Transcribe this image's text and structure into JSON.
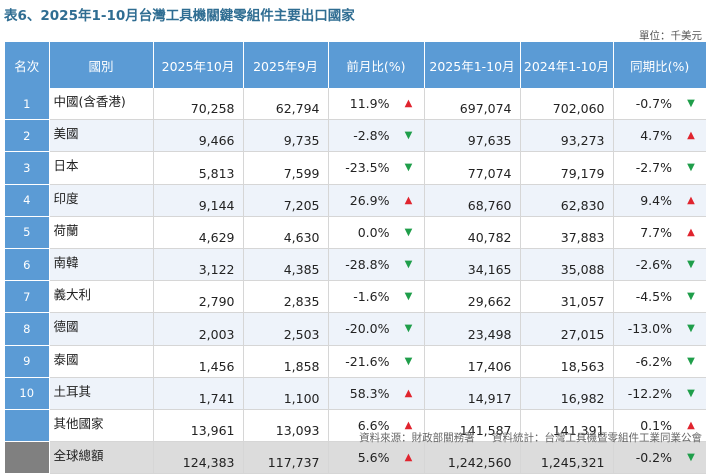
{
  "title": "表6、2025年1-10月台灣工具機關鍵零組件主要出口國家",
  "unit": "單位：千美元",
  "headers": [
    "名次",
    "國別",
    "2025年10月",
    "2025年9月",
    "前月比(%)",
    "2025年1-10月",
    "2024年1-10月",
    "同期比(%)"
  ],
  "rows": [
    {
      "rank": "1",
      "country": "中國(含香港)",
      "oct": "70,258",
      "sep": "62,794",
      "mom": "11.9%",
      "mom_dir": "up",
      "ytd25": "697,074",
      "ytd24": "702,060",
      "yoy": "-0.7%",
      "yoy_dir": "down"
    },
    {
      "rank": "2",
      "country": "美國",
      "oct": "9,466",
      "sep": "9,735",
      "mom": "-2.8%",
      "mom_dir": "down",
      "ytd25": "97,635",
      "ytd24": "93,273",
      "yoy": "4.7%",
      "yoy_dir": "up"
    },
    {
      "rank": "3",
      "country": "日本",
      "oct": "5,813",
      "sep": "7,599",
      "mom": "-23.5%",
      "mom_dir": "down",
      "ytd25": "77,074",
      "ytd24": "79,179",
      "yoy": "-2.7%",
      "yoy_dir": "down"
    },
    {
      "rank": "4",
      "country": "印度",
      "oct": "9,144",
      "sep": "7,205",
      "mom": "26.9%",
      "mom_dir": "up",
      "ytd25": "68,760",
      "ytd24": "62,830",
      "yoy": "9.4%",
      "yoy_dir": "up"
    },
    {
      "rank": "5",
      "country": "荷蘭",
      "oct": "4,629",
      "sep": "4,630",
      "mom": "0.0%",
      "mom_dir": "down",
      "ytd25": "40,782",
      "ytd24": "37,883",
      "yoy": "7.7%",
      "yoy_dir": "up"
    },
    {
      "rank": "6",
      "country": "南韓",
      "oct": "3,122",
      "sep": "4,385",
      "mom": "-28.8%",
      "mom_dir": "down",
      "ytd25": "34,165",
      "ytd24": "35,088",
      "yoy": "-2.6%",
      "yoy_dir": "down"
    },
    {
      "rank": "7",
      "country": "義大利",
      "oct": "2,790",
      "sep": "2,835",
      "mom": "-1.6%",
      "mom_dir": "down",
      "ytd25": "29,662",
      "ytd24": "31,057",
      "yoy": "-4.5%",
      "yoy_dir": "down"
    },
    {
      "rank": "8",
      "country": "德國",
      "oct": "2,003",
      "sep": "2,503",
      "mom": "-20.0%",
      "mom_dir": "down",
      "ytd25": "23,498",
      "ytd24": "27,015",
      "yoy": "-13.0%",
      "yoy_dir": "down"
    },
    {
      "rank": "9",
      "country": "泰國",
      "oct": "1,456",
      "sep": "1,858",
      "mom": "-21.6%",
      "mom_dir": "down",
      "ytd25": "17,406",
      "ytd24": "18,563",
      "yoy": "-6.2%",
      "yoy_dir": "down"
    },
    {
      "rank": "10",
      "country": "土耳其",
      "oct": "1,741",
      "sep": "1,100",
      "mom": "58.3%",
      "mom_dir": "up",
      "ytd25": "14,917",
      "ytd24": "16,982",
      "yoy": "-12.2%",
      "yoy_dir": "down"
    },
    {
      "rank": "",
      "country": "其他國家",
      "oct": "13,961",
      "sep": "13,093",
      "mom": "6.6%",
      "mom_dir": "up",
      "ytd25": "141,587",
      "ytd24": "141,391",
      "yoy": "0.1%",
      "yoy_dir": "up"
    },
    {
      "rank": "",
      "country": "全球總額",
      "oct": "124,383",
      "sep": "117,737",
      "mom": "5.6%",
      "mom_dir": "up",
      "ytd25": "1,242,560",
      "ytd24": "1,245,321",
      "yoy": "-0.2%",
      "yoy_dir": "down",
      "is_total": true
    }
  ],
  "arrows": {
    "up": "▲",
    "down": "▼"
  },
  "colors": {
    "header": "#5b9bd5",
    "total_rank": "#808080",
    "up": "#e0242e",
    "down": "#1f9e4a",
    "title": "#2f6d92"
  },
  "source_left": "資料來源：財政部關務署",
  "source_right": "資料統計：台灣工具機暨零組件工業同業公會"
}
